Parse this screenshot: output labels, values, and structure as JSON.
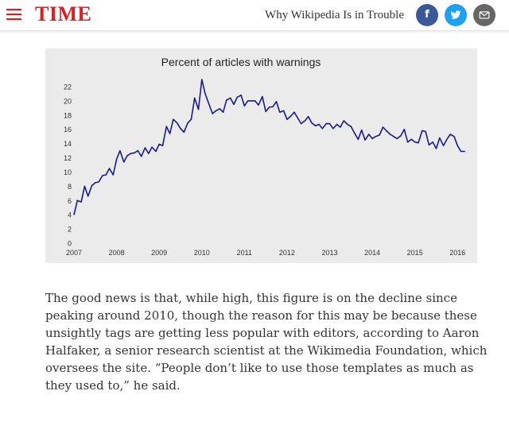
{
  "header": {
    "brand": "TIME",
    "article_title": "Why Wikipedia Is in Trouble",
    "share": {
      "facebook_glyph": "f",
      "twitter_icon": "twitter-bird-icon",
      "email_icon": "envelope-icon"
    },
    "colors": {
      "brand": "#e11b22",
      "facebook": "#3b5998",
      "twitter": "#1da1f2",
      "email": "#666666"
    }
  },
  "chart_data": {
    "type": "line",
    "title": "Percent of articles with warnings",
    "xlabel": "",
    "ylabel": "",
    "x_ticks": [
      "2007",
      "2008",
      "2009",
      "2010",
      "2011",
      "2012",
      "2013",
      "2014",
      "2015",
      "2016"
    ],
    "y_ticks": [
      "0",
      "2",
      "4",
      "6",
      "8",
      "10",
      "12",
      "14",
      "16",
      "18",
      "20",
      "22"
    ],
    "xlim": [
      2007,
      2016.2
    ],
    "ylim": [
      0,
      22
    ],
    "grid": false,
    "series": [
      {
        "color": "#1a1a8c",
        "points": [
          [
            2007.0,
            4.0
          ],
          [
            2007.08,
            6.0
          ],
          [
            2007.17,
            5.8
          ],
          [
            2007.25,
            8.0
          ],
          [
            2007.33,
            6.6
          ],
          [
            2007.42,
            8.1
          ],
          [
            2007.5,
            8.5
          ],
          [
            2007.58,
            8.6
          ],
          [
            2007.67,
            9.5
          ],
          [
            2007.75,
            9.6
          ],
          [
            2007.83,
            10.5
          ],
          [
            2007.92,
            9.6
          ],
          [
            2008.0,
            11.8
          ],
          [
            2008.08,
            13.0
          ],
          [
            2008.17,
            11.4
          ],
          [
            2008.25,
            12.3
          ],
          [
            2008.33,
            12.6
          ],
          [
            2008.42,
            12.7
          ],
          [
            2008.5,
            13.0
          ],
          [
            2008.58,
            12.2
          ],
          [
            2008.67,
            13.4
          ],
          [
            2008.75,
            12.6
          ],
          [
            2008.83,
            13.5
          ],
          [
            2008.92,
            12.9
          ],
          [
            2009.0,
            13.9
          ],
          [
            2009.08,
            13.7
          ],
          [
            2009.17,
            16.4
          ],
          [
            2009.25,
            15.4
          ],
          [
            2009.33,
            17.4
          ],
          [
            2009.42,
            16.9
          ],
          [
            2009.5,
            16.1
          ],
          [
            2009.58,
            15.6
          ],
          [
            2009.67,
            16.9
          ],
          [
            2009.75,
            17.4
          ],
          [
            2009.83,
            20.4
          ],
          [
            2009.92,
            18.8
          ],
          [
            2010.0,
            23.0
          ],
          [
            2010.08,
            21.0
          ],
          [
            2010.17,
            19.5
          ],
          [
            2010.25,
            18.2
          ],
          [
            2010.33,
            18.6
          ],
          [
            2010.42,
            18.9
          ],
          [
            2010.5,
            18.4
          ],
          [
            2010.58,
            20.1
          ],
          [
            2010.67,
            20.4
          ],
          [
            2010.75,
            19.5
          ],
          [
            2010.83,
            20.5
          ],
          [
            2010.92,
            20.8
          ],
          [
            2011.0,
            19.3
          ],
          [
            2011.08,
            20.0
          ],
          [
            2011.17,
            20.0
          ],
          [
            2011.25,
            20.0
          ],
          [
            2011.33,
            19.4
          ],
          [
            2011.42,
            20.6
          ],
          [
            2011.5,
            18.5
          ],
          [
            2011.58,
            19.1
          ],
          [
            2011.67,
            19.2
          ],
          [
            2011.75,
            19.9
          ],
          [
            2011.83,
            18.4
          ],
          [
            2011.92,
            18.6
          ],
          [
            2012.0,
            17.4
          ],
          [
            2012.08,
            17.8
          ],
          [
            2012.17,
            18.4
          ],
          [
            2012.25,
            17.6
          ],
          [
            2012.33,
            16.8
          ],
          [
            2012.42,
            17.2
          ],
          [
            2012.5,
            17.8
          ],
          [
            2012.58,
            16.9
          ],
          [
            2012.67,
            16.5
          ],
          [
            2012.75,
            16.7
          ],
          [
            2012.83,
            16.1
          ],
          [
            2012.92,
            16.8
          ],
          [
            2013.0,
            16.8
          ],
          [
            2013.08,
            16.1
          ],
          [
            2013.17,
            16.7
          ],
          [
            2013.25,
            16.3
          ],
          [
            2013.33,
            17.2
          ],
          [
            2013.42,
            16.7
          ],
          [
            2013.5,
            16.4
          ],
          [
            2013.58,
            15.5
          ],
          [
            2013.67,
            14.6
          ],
          [
            2013.75,
            15.9
          ],
          [
            2013.83,
            14.5
          ],
          [
            2013.92,
            15.3
          ],
          [
            2014.0,
            14.7
          ],
          [
            2014.08,
            15.0
          ],
          [
            2014.17,
            15.2
          ],
          [
            2014.25,
            16.3
          ],
          [
            2014.33,
            15.8
          ],
          [
            2014.42,
            15.3
          ],
          [
            2014.5,
            15.0
          ],
          [
            2014.58,
            14.7
          ],
          [
            2014.67,
            15.1
          ],
          [
            2014.75,
            16.0
          ],
          [
            2014.83,
            14.2
          ],
          [
            2014.92,
            14.6
          ],
          [
            2015.0,
            14.2
          ],
          [
            2015.08,
            14.1
          ],
          [
            2015.17,
            15.8
          ],
          [
            2015.25,
            15.7
          ],
          [
            2015.33,
            13.8
          ],
          [
            2015.42,
            14.2
          ],
          [
            2015.5,
            13.3
          ],
          [
            2015.58,
            14.8
          ],
          [
            2015.67,
            13.7
          ],
          [
            2015.75,
            14.6
          ],
          [
            2015.83,
            15.3
          ],
          [
            2015.92,
            15.0
          ],
          [
            2016.0,
            13.7
          ],
          [
            2016.08,
            12.9
          ],
          [
            2016.17,
            12.9
          ]
        ]
      }
    ]
  },
  "article": {
    "paragraph": "The good news is that, while high, this figure is on the decline since peaking around 2010, though the reason for this may be because these unsightly tags are getting less popular with editors, according to Aaron Halfaker, a senior research scientist at the Wikimedia Foundation, which oversees the site. “People don’t like to use those templates as much as they used to,” he said."
  }
}
